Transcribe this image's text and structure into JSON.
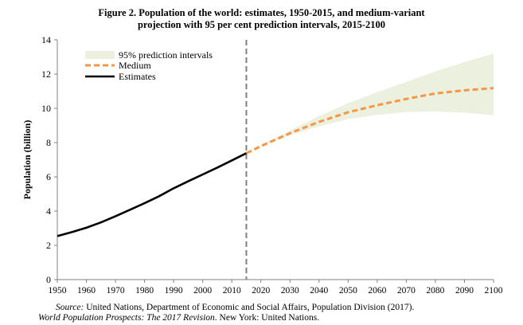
{
  "title": {
    "line1": "Figure 2.  Population of the world: estimates, 1950-2015, and medium-variant",
    "line2": "projection with 95 per cent prediction intervals, 2015-2100"
  },
  "source": {
    "label": "Source:",
    "line1": "United Nations, Department of Economic and Social Affairs, Population Division (2017).",
    "line2_italic": "World Population Prospects: The 2017 Revision",
    "line2_rest": ". New York: United Nations."
  },
  "colors": {
    "estimates": "#000000",
    "medium": "#f79646",
    "interval": "#ebf1de",
    "divider": "#808080",
    "axis": "#808080"
  },
  "chart_data": {
    "type": "line",
    "xlabel": "",
    "ylabel": "Population (billion)",
    "xlim": [
      1950,
      2100
    ],
    "ylim": [
      0,
      14
    ],
    "xticks": [
      1950,
      1960,
      1970,
      1980,
      1990,
      2000,
      2010,
      2020,
      2030,
      2040,
      2050,
      2060,
      2070,
      2080,
      2090,
      2100
    ],
    "yticks": [
      0,
      2,
      4,
      6,
      8,
      10,
      12,
      14
    ],
    "grid": false,
    "legend_position": "top-left",
    "vertical_line_x": 2015,
    "series": [
      {
        "name": "Estimates",
        "style": "solid",
        "x": [
          1950,
          1955,
          1960,
          1965,
          1970,
          1975,
          1980,
          1985,
          1990,
          1995,
          2000,
          2005,
          2010,
          2015
        ],
        "values": [
          2.54,
          2.77,
          3.03,
          3.34,
          3.7,
          4.08,
          4.46,
          4.87,
          5.33,
          5.74,
          6.14,
          6.54,
          6.96,
          7.38
        ]
      },
      {
        "name": "Medium",
        "style": "dashed",
        "x": [
          2015,
          2020,
          2030,
          2040,
          2050,
          2060,
          2070,
          2080,
          2090,
          2100
        ],
        "values": [
          7.38,
          7.79,
          8.55,
          9.21,
          9.77,
          10.18,
          10.55,
          10.87,
          11.05,
          11.18
        ]
      },
      {
        "name": "95% prediction intervals",
        "style": "band",
        "x": [
          2015,
          2020,
          2030,
          2040,
          2050,
          2060,
          2070,
          2080,
          2090,
          2100
        ],
        "lower": [
          7.38,
          7.75,
          8.43,
          8.95,
          9.37,
          9.62,
          9.78,
          9.82,
          9.75,
          9.6
        ],
        "upper": [
          7.38,
          7.85,
          8.7,
          9.55,
          10.3,
          10.95,
          11.55,
          12.15,
          12.7,
          13.2
        ]
      }
    ]
  }
}
